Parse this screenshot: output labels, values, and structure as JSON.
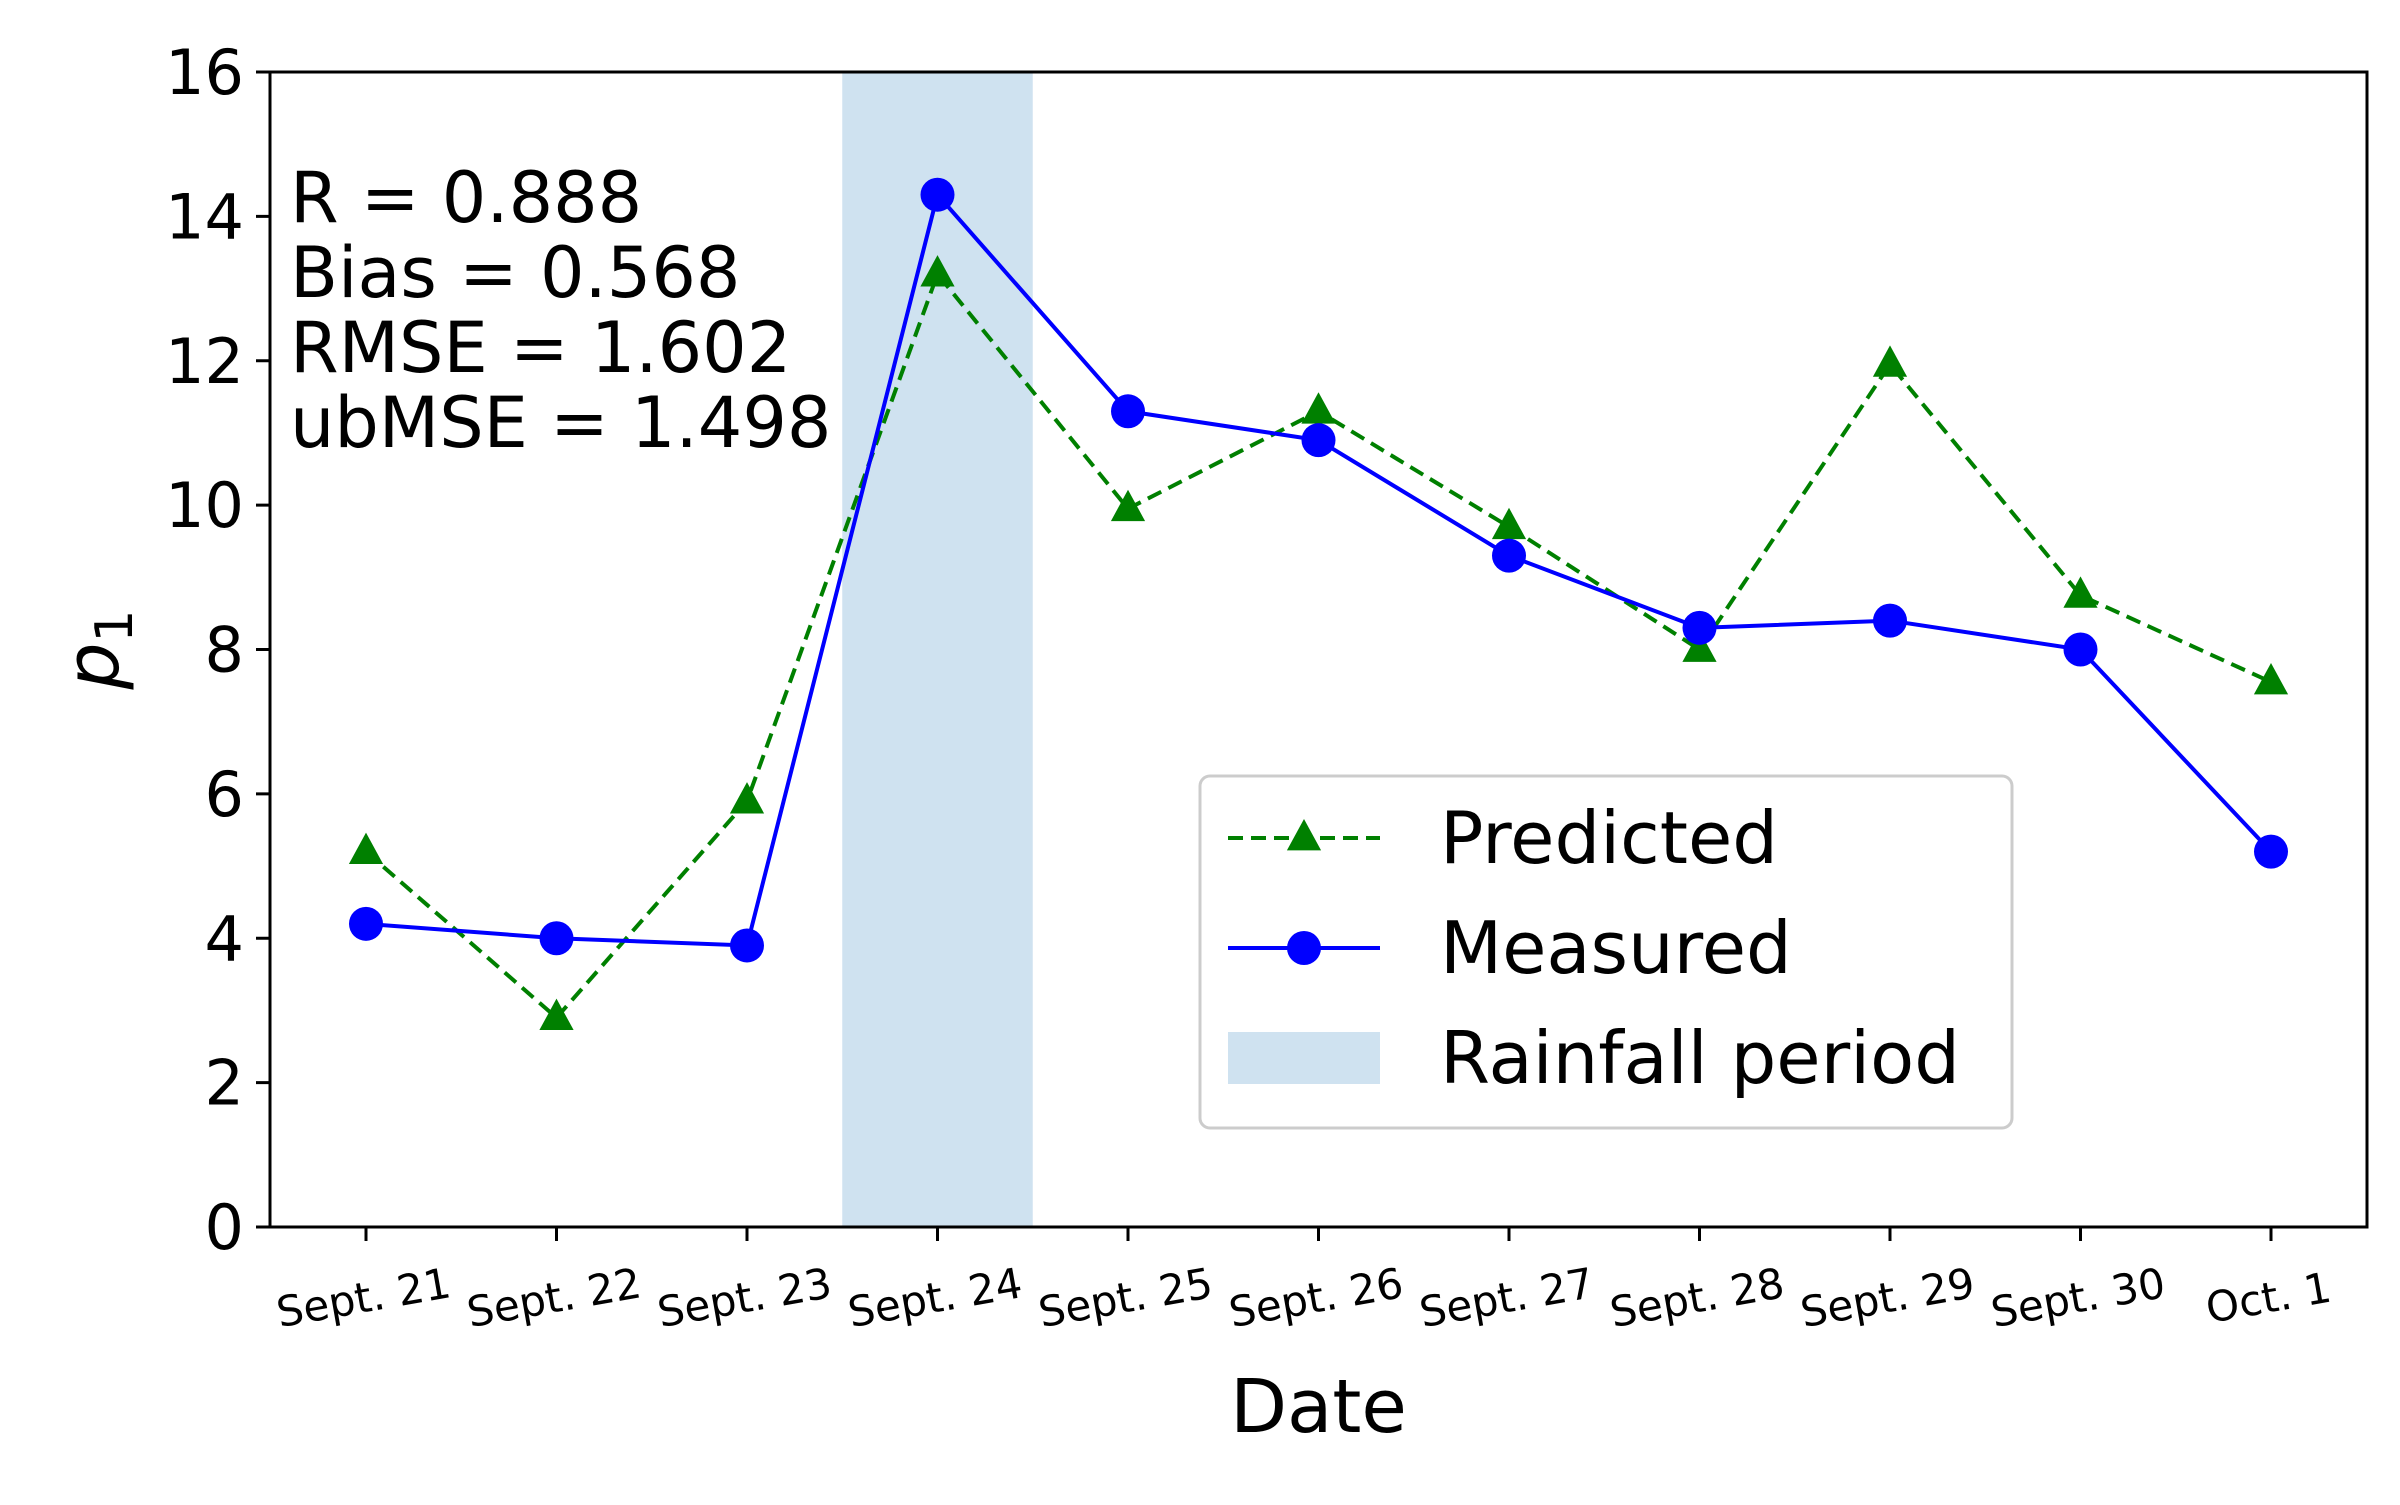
{
  "chart_data": {
    "type": "line",
    "xlabel": "Date",
    "ylabel": "p",
    "ylabel_subscript": "1",
    "categories": [
      "Sept. 21",
      "Sept. 22",
      "Sept. 23",
      "Sept. 24",
      "Sept. 25",
      "Sept. 26",
      "Sept. 27",
      "Sept. 28",
      "Sept. 29",
      "Sept. 30",
      "Oct. 1"
    ],
    "ylim": [
      0,
      16
    ],
    "yticks": [
      0,
      2,
      4,
      6,
      8,
      10,
      12,
      14,
      16
    ],
    "series": [
      {
        "name": "Predicted",
        "color": "#008000",
        "line_style": "dashed",
        "marker": "triangle",
        "values": [
          5.2,
          2.9,
          5.9,
          13.2,
          9.95,
          11.3,
          9.7,
          8.0,
          11.95,
          8.75,
          7.55
        ]
      },
      {
        "name": "Measured",
        "color": "#0000ff",
        "line_style": "solid",
        "marker": "circle",
        "values": [
          4.2,
          4.0,
          3.9,
          14.3,
          11.3,
          10.9,
          9.3,
          8.3,
          8.4,
          8.0,
          5.2
        ]
      }
    ],
    "shaded_region": {
      "name": "Rainfall period",
      "color": "#cfe2f0",
      "x_from": 2.5,
      "x_to": 3.5
    },
    "annotation_lines": [
      "R = 0.888",
      "Bias = 0.568",
      "RMSE = 1.602",
      "ubMSE = 1.498"
    ],
    "legend_position": "lower-right",
    "legend_entries": [
      "Predicted",
      "Measured",
      "Rainfall period"
    ],
    "grid": false
  }
}
